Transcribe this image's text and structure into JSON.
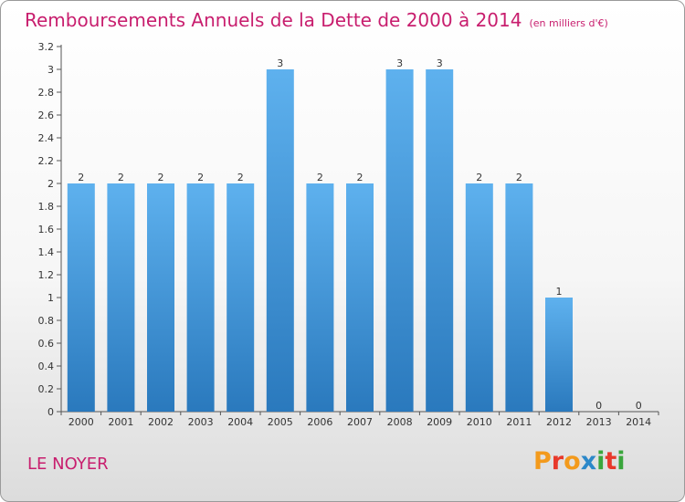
{
  "header": {
    "title": "Remboursements Annuels de la Dette de 2000 à 2014",
    "unit": "(en milliers d'€)"
  },
  "footer": {
    "commune": "LE NOYER",
    "logo_letters": [
      "P",
      "r",
      "o",
      "x",
      "i",
      "t",
      "i"
    ]
  },
  "colors": {
    "title": "#c81e6e",
    "bar_top": "#5eb1ee",
    "bar_bottom": "#2a79bd",
    "logo": [
      "#f39a1c",
      "#e8392b",
      "#f39a1c",
      "#2c88c9",
      "#3aa63c",
      "#e8392b",
      "#3aa63c"
    ]
  },
  "chart_data": {
    "type": "bar",
    "title": "Remboursements Annuels de la Dette de 2000 à 2014",
    "categories": [
      "2000",
      "2001",
      "2002",
      "2003",
      "2004",
      "2005",
      "2006",
      "2007",
      "2008",
      "2009",
      "2010",
      "2011",
      "2012",
      "2013",
      "2014"
    ],
    "values": [
      2,
      2,
      2,
      2,
      2,
      3,
      2,
      2,
      3,
      3,
      2,
      2,
      1,
      0,
      0
    ],
    "data_labels": [
      "2",
      "2",
      "2",
      "2",
      "2",
      "3",
      "2",
      "2",
      "3",
      "3",
      "2",
      "2",
      "1",
      "0",
      "0"
    ],
    "yticks": [
      "0",
      "0.2",
      "0.4",
      "0.6",
      "0.8",
      "1",
      "1.2",
      "1.4",
      "1.6",
      "1.8",
      "2",
      "2.2",
      "2.4",
      "2.6",
      "2.8",
      "3",
      "3.2"
    ],
    "ylim": [
      0,
      3.2
    ],
    "grid": false,
    "legend": "none"
  }
}
